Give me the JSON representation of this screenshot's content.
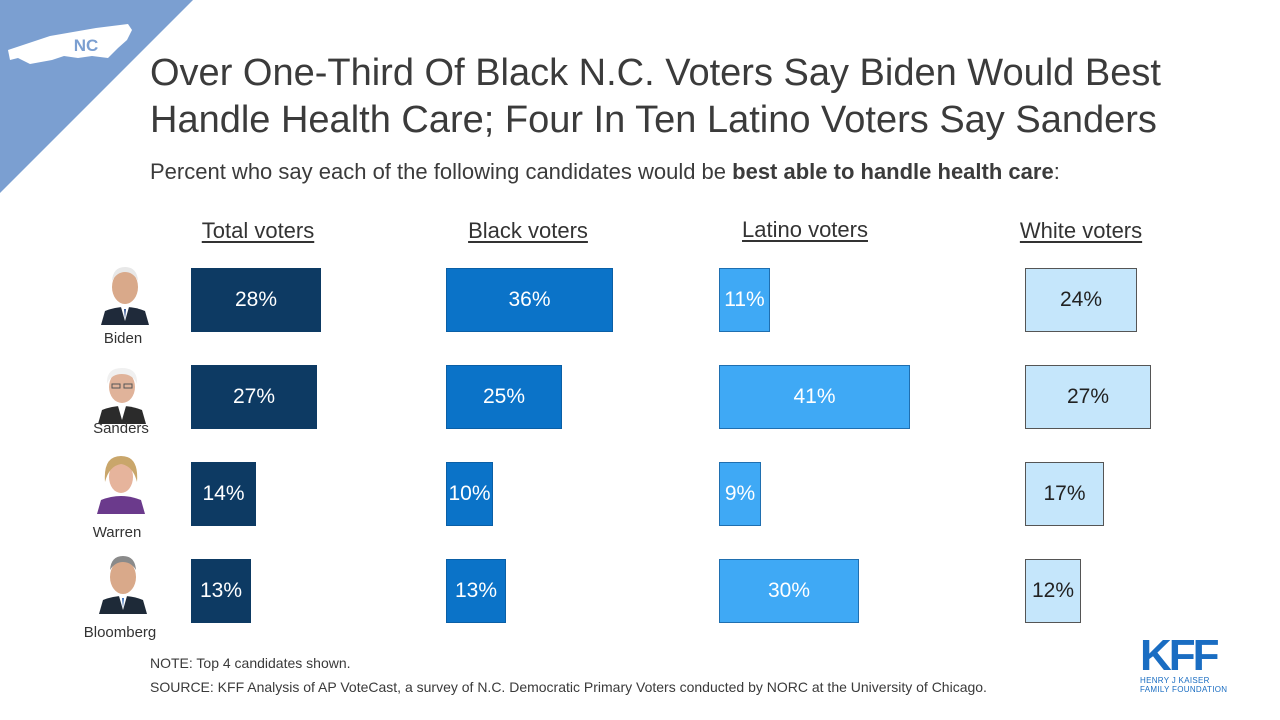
{
  "badge": {
    "state": "NC"
  },
  "title": "Over One-Third Of Black N.C. Voters Say Biden Would Best Handle Health Care; Four In Ten Latino Voters Say Sanders",
  "subtitle_plain": "Percent who say each of the following candidates would be ",
  "subtitle_bold": "best able to handle health care",
  "subtitle_end": ":",
  "chart_data": {
    "type": "bar",
    "orientation": "horizontal",
    "categories": [
      "Biden",
      "Sanders",
      "Warren",
      "Bloomberg"
    ],
    "series": [
      {
        "name": "Total voters",
        "values": [
          28,
          27,
          14,
          13
        ],
        "color": "#0d3a63",
        "text_color": "#ffffff"
      },
      {
        "name": "Black voters",
        "values": [
          36,
          25,
          10,
          13
        ],
        "color": "#0b73c8",
        "text_color": "#ffffff"
      },
      {
        "name": "Latino voters",
        "values": [
          11,
          41,
          9,
          30
        ],
        "color": "#3fa9f5",
        "text_color": "#ffffff"
      },
      {
        "name": "White voters",
        "values": [
          24,
          27,
          17,
          12
        ],
        "color": "#c5e6fb",
        "text_color": "#222222"
      }
    ],
    "labels": [
      [
        "28%",
        "27%",
        "14%",
        "13%"
      ],
      [
        "36%",
        "25%",
        "10%",
        "13%"
      ],
      [
        "11%",
        "41%",
        "9%",
        "30%"
      ],
      [
        "24%",
        "27%",
        "17%",
        "12%"
      ]
    ],
    "value_suffix": "%"
  },
  "note": "NOTE: Top 4 candidates shown.",
  "source": "SOURCE: KFF Analysis of AP VoteCast, a survey of N.C. Democratic Primary Voters conducted by NORC at the University  of Chicago.",
  "logo": {
    "letters": "KFF",
    "line1": "HENRY J KAISER",
    "line2": "FAMILY FOUNDATION"
  },
  "colors": {
    "badge": "#7b9fd1",
    "accent": "#1a6dc2"
  }
}
